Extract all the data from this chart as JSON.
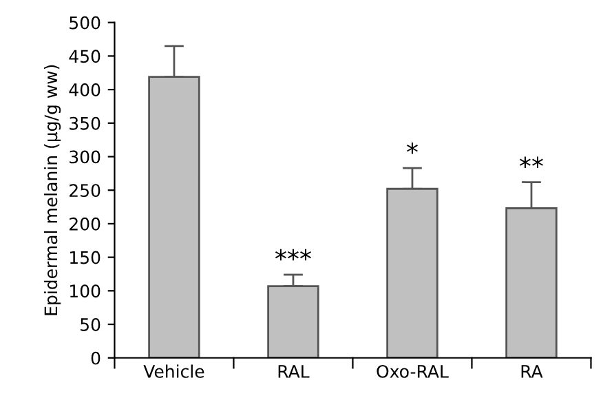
{
  "chart_data": {
    "type": "bar",
    "ylabel": "Epidermal melanin (µg/g ww)",
    "categories": [
      "Vehicle",
      "RAL",
      "Oxo-RAL",
      "RA"
    ],
    "values": [
      419,
      107,
      252,
      223
    ],
    "errors": [
      [
        419,
        465
      ],
      [
        107,
        124
      ],
      [
        252,
        283
      ],
      [
        223,
        262
      ]
    ],
    "color": "#c0c0c0",
    "ylim": [
      0,
      500
    ],
    "yticks": [
      0,
      50,
      100,
      150,
      200,
      250,
      300,
      350,
      400,
      450,
      500
    ],
    "grid": false,
    "annotations": [
      {
        "text": "***",
        "x": "RAL",
        "y": 124
      },
      {
        "text": "*",
        "x": "Oxo-RAL",
        "y": 283
      },
      {
        "text": "**",
        "x": "RA",
        "y": 262
      }
    ]
  }
}
